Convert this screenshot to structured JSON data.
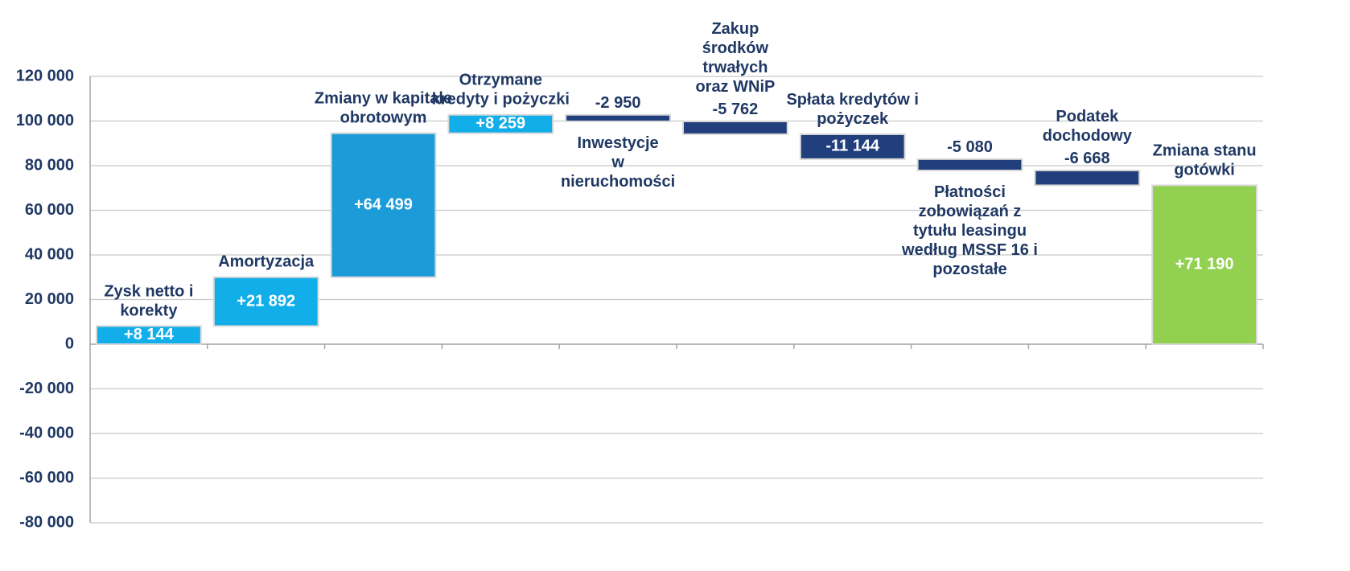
{
  "chart_data": {
    "type": "waterfall",
    "categories": [
      "Zysk netto i\nkorekty",
      "Amortyzacja",
      "Zmiany w kapitale\nobrotowym",
      "Otrzymane\nkredyty i pożyczki",
      "Inwestycje\nw\nnieruchomości",
      "Zakup\nśrodków\ntrwałych\noraz WNiP",
      "Spłata kredytów i\npożyczek",
      "Płatności\nzobowiązań z\ntytułu leasingu\nwedług MSSF 16 i\npozostałe",
      "Podatek\ndochodowy",
      "Zmiana stanu\ngotówki"
    ],
    "values": [
      8144,
      21892,
      64499,
      8259,
      -2950,
      -5762,
      -11144,
      -5080,
      -6668,
      71190
    ],
    "value_labels": [
      "+8 144",
      "+21 892",
      "+64 499",
      "+8 259",
      "-2 950",
      "-5 762",
      "-11 144",
      "-5 080",
      "-6 668",
      "+71 190"
    ],
    "is_total": [
      false,
      false,
      false,
      false,
      false,
      false,
      false,
      false,
      false,
      true
    ],
    "colors": [
      "#12aee9",
      "#12aee9",
      "#1b9bd8",
      "#12aee9",
      "#203f7c",
      "#203f7c",
      "#203f7c",
      "#203f7c",
      "#203f7c",
      "#92d050"
    ],
    "ylim": [
      -80000,
      120000
    ],
    "yticks": [
      {
        "value": -80000,
        "label": "-80 000"
      },
      {
        "value": -60000,
        "label": "-60 000"
      },
      {
        "value": -40000,
        "label": "-40 000"
      },
      {
        "value": -20000,
        "label": "-20 000"
      },
      0,
      {
        "value": 20000,
        "label": "20 000"
      },
      {
        "value": 40000,
        "label": "40 000"
      },
      {
        "value": 60000,
        "label": "60 000"
      },
      {
        "value": 80000,
        "label": "80 000"
      },
      {
        "value": 100000,
        "label": "100 000"
      },
      {
        "value": 120000,
        "label": "120 000"
      }
    ],
    "grid": true
  }
}
